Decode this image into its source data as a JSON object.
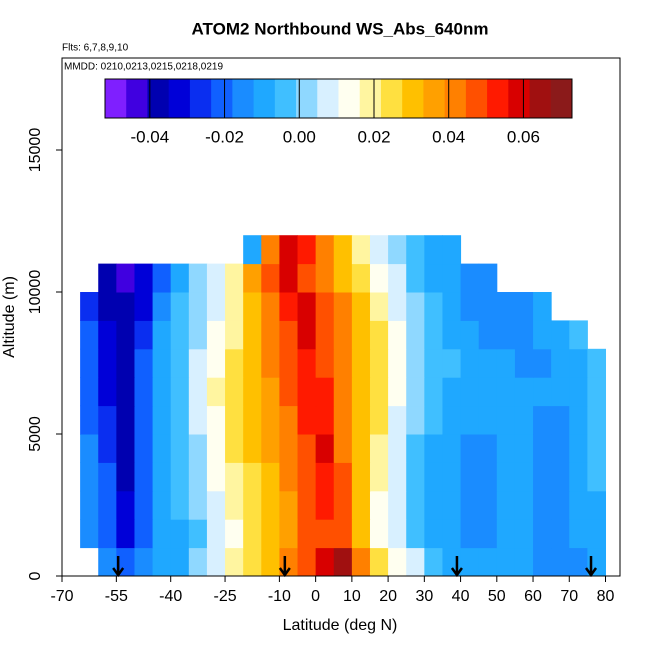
{
  "chart_data": {
    "type": "heatmap",
    "title": "ATOM2 Northbound WS_Abs_640nm",
    "subtitle": "Flts: 6,7,8,9,10",
    "annotation": "MMDD: 0210,0213,0215,0218,0219",
    "x_label": "Latitude (deg N)",
    "y_label": "Altitude (m)",
    "xlim": [
      -70,
      84
    ],
    "ylim": [
      0,
      18240
    ],
    "xticks": [
      -70,
      -55,
      -40,
      -25,
      -10,
      0,
      10,
      20,
      30,
      40,
      50,
      60,
      70,
      80
    ],
    "yticks": [
      0,
      5000,
      10000,
      15000
    ],
    "x_bins": [
      -65,
      -60,
      -55,
      -50,
      -45,
      -40,
      -35,
      -30,
      -25,
      -20,
      -15,
      -10,
      -5,
      0,
      5,
      10,
      15,
      20,
      25,
      30,
      35,
      40,
      45,
      50,
      55,
      60,
      65,
      70,
      75,
      80
    ],
    "y_bins": [
      0,
      1000,
      2000,
      3000,
      4000,
      5000,
      6000,
      7000,
      8000,
      9000,
      10000,
      11000,
      12000
    ],
    "z": [
      [
        null,
        -0.015,
        -0.02,
        -0.015,
        -0.01,
        -0.008,
        0,
        0.01,
        0.02,
        0.025,
        0.03,
        0.04,
        0.045,
        0.06,
        0.065,
        0.04,
        0.025,
        0.015,
        0.005,
        -0.005,
        -0.01,
        -0.012,
        -0.012,
        -0.012,
        -0.012,
        -0.015,
        -0.015,
        -0.015,
        -0.012
      ],
      [
        -0.015,
        -0.02,
        -0.03,
        -0.02,
        -0.012,
        -0.008,
        -0.002,
        0.008,
        0.015,
        0.022,
        0.03,
        0.038,
        0.045,
        0.05,
        0.045,
        0.03,
        0.015,
        0.005,
        -0.005,
        -0.01,
        -0.012,
        -0.015,
        -0.015,
        -0.012,
        -0.012,
        -0.015,
        -0.015,
        -0.012,
        -0.01
      ],
      [
        -0.015,
        -0.02,
        -0.032,
        -0.022,
        -0.012,
        -0.006,
        0,
        0.01,
        0.018,
        0.024,
        0.03,
        0.038,
        0.045,
        0.052,
        0.045,
        0.03,
        0.015,
        0.005,
        -0.005,
        -0.01,
        -0.012,
        -0.015,
        -0.015,
        -0.012,
        -0.012,
        -0.015,
        -0.015,
        -0.01,
        -0.008
      ],
      [
        -0.015,
        -0.022,
        -0.035,
        -0.022,
        -0.012,
        -0.005,
        0.002,
        0.012,
        0.02,
        0.026,
        0.032,
        0.04,
        0.048,
        0.055,
        0.045,
        0.03,
        0.018,
        0.006,
        -0.004,
        -0.01,
        -0.012,
        -0.015,
        -0.015,
        -0.012,
        -0.012,
        -0.014,
        -0.014,
        -0.01,
        -0.006
      ],
      [
        -0.015,
        -0.025,
        -0.035,
        -0.02,
        -0.01,
        -0.004,
        0.004,
        0.014,
        0.022,
        0.028,
        0.034,
        0.042,
        0.05,
        0.056,
        0.044,
        0.032,
        0.02,
        0.008,
        -0.002,
        -0.008,
        -0.012,
        -0.014,
        -0.014,
        -0.012,
        -0.012,
        -0.014,
        -0.014,
        -0.01,
        -0.005
      ],
      [
        -0.018,
        -0.028,
        -0.036,
        -0.02,
        -0.01,
        -0.002,
        0.006,
        0.016,
        0.024,
        0.03,
        0.036,
        0.044,
        0.052,
        0.055,
        0.042,
        0.032,
        0.022,
        0.01,
        0,
        -0.006,
        -0.01,
        -0.012,
        -0.012,
        -0.012,
        -0.012,
        -0.013,
        -0.013,
        -0.01,
        -0.005
      ],
      [
        -0.02,
        -0.03,
        -0.036,
        -0.02,
        -0.01,
        -0.002,
        0.008,
        0.018,
        0.025,
        0.032,
        0.038,
        0.046,
        0.054,
        0.052,
        0.04,
        0.032,
        0.024,
        0.012,
        0.002,
        -0.004,
        -0.008,
        -0.01,
        -0.012,
        -0.012,
        -0.012,
        -0.012,
        -0.012,
        -0.01,
        -0.006
      ],
      [
        -0.02,
        -0.032,
        -0.036,
        -0.02,
        -0.01,
        -0.002,
        0.006,
        0.016,
        0.024,
        0.032,
        0.04,
        0.048,
        0.055,
        0.05,
        0.04,
        0.032,
        0.024,
        0.014,
        0.004,
        -0.002,
        -0.006,
        -0.01,
        -0.012,
        -0.012,
        -0.014,
        -0.014,
        -0.012,
        -0.008,
        -0.006
      ],
      [
        -0.022,
        -0.034,
        -0.038,
        -0.024,
        -0.012,
        -0.004,
        0.004,
        0.012,
        0.02,
        0.03,
        0.04,
        0.05,
        0.058,
        0.05,
        0.04,
        0.03,
        0.022,
        0.012,
        0.002,
        -0.004,
        -0.008,
        -0.012,
        -0.014,
        -0.014,
        -0.014,
        -0.012,
        -0.01,
        -0.006,
        null
      ],
      [
        -0.025,
        -0.036,
        -0.04,
        -0.03,
        -0.016,
        -0.006,
        0.002,
        0.01,
        0.018,
        0.028,
        0.04,
        0.052,
        0.06,
        0.05,
        0.04,
        0.03,
        0.02,
        0.01,
        0,
        -0.006,
        -0.01,
        -0.014,
        -0.016,
        -0.016,
        -0.014,
        -0.012,
        null,
        null,
        null
      ],
      [
        null,
        -0.038,
        -0.042,
        -0.034,
        -0.02,
        -0.01,
        0,
        0.01,
        0.02,
        0.035,
        0.05,
        0.06,
        0.05,
        0.04,
        0.03,
        0.022,
        0.014,
        0.006,
        -0.002,
        -0.008,
        -0.012,
        -0.014,
        -0.014,
        null,
        null,
        null,
        null,
        null,
        null
      ],
      [
        null,
        null,
        null,
        null,
        null,
        null,
        null,
        null,
        null,
        -0.01,
        0.04,
        0.06,
        0.055,
        0.04,
        0.03,
        0.02,
        0.01,
        0.002,
        -0.005,
        -0.01,
        -0.012,
        null,
        null,
        null,
        null,
        null,
        null,
        null,
        null
      ]
    ],
    "clim": [
      -0.052,
      0.073
    ],
    "cticks": [
      -0.04,
      -0.02,
      {
        "value": 0,
        "label": "0.00"
      },
      0.02,
      0.04,
      0.06
    ],
    "colors": [
      "#7f1fff",
      "#4000e0",
      "#0000b0",
      "#0000d8",
      "#0a2ef0",
      "#1060ff",
      "#1a8cff",
      "#1fa8ff",
      "#40bfff",
      "#8fd8ff",
      "#d8f0ff",
      "#fffff0",
      "#fff5a0",
      "#ffe040",
      "#ffc000",
      "#ffa000",
      "#ff8000",
      "#ff5000",
      "#ff1a00",
      "#d80000",
      "#a01010",
      "#8b1a1a"
    ],
    "arrows": [
      -54.5,
      -8.5,
      39,
      76
    ]
  }
}
